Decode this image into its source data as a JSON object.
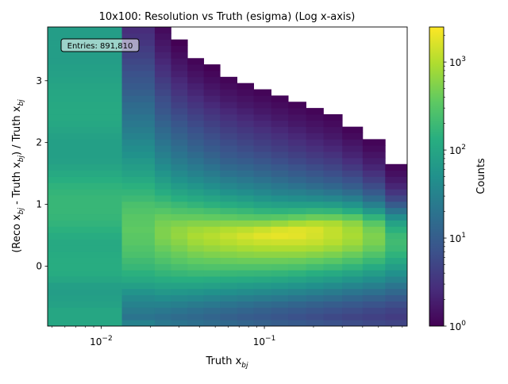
{
  "chart_data": {
    "type": "heatmap",
    "title": "10x100: Resolution vs Truth (esigma) (Log x-axis)",
    "xlabel": {
      "prefix": "Truth x",
      "sub": "bj"
    },
    "ylabel": {
      "parts": [
        {
          "t": "(Reco x"
        },
        {
          "t": "bj",
          "sub": true
        },
        {
          "t": " - Truth x"
        },
        {
          "t": "bj",
          "sub": true
        },
        {
          "t": ") / Truth x"
        },
        {
          "t": "bj",
          "sub": true
        }
      ]
    },
    "x_scale": "log",
    "xlim": [
      0.0047,
      0.75
    ],
    "ylim": [
      -0.97,
      3.87
    ],
    "x_ticks": [
      {
        "value": 0.01,
        "base": "10",
        "exp": "−2"
      },
      {
        "value": 0.1,
        "base": "10",
        "exp": "−1"
      }
    ],
    "y_ticks": [
      {
        "value": 0,
        "label": "0"
      },
      {
        "value": 1,
        "label": "1"
      },
      {
        "value": 2,
        "label": "2"
      },
      {
        "value": 3,
        "label": "3"
      }
    ],
    "annotation": "Entries: 891,810",
    "colorbar": {
      "label": "Counts",
      "scale": "log",
      "range": [
        1,
        2500
      ],
      "colormap": "viridis",
      "ticks": [
        {
          "value": 1,
          "base": "10",
          "exp": "0"
        },
        {
          "value": 10,
          "base": "10",
          "exp": "1"
        },
        {
          "value": 100,
          "base": "10",
          "exp": "2"
        },
        {
          "value": 1000,
          "base": "10",
          "exp": "3"
        }
      ]
    },
    "columns": [
      {
        "x0": 0.0047,
        "x1": 0.0134,
        "log_counts": [
          2.0,
          2.0,
          2.0,
          1.93,
          1.9,
          1.88,
          1.9,
          2.0,
          2.08,
          2.1,
          2.1,
          2.08,
          2.05,
          2.05,
          2.1,
          2.15,
          2.2,
          2.23,
          2.25,
          2.25,
          2.25,
          2.22,
          2.18,
          2.12,
          2.05,
          1.98,
          1.92,
          1.9,
          1.9,
          1.9,
          1.93,
          1.98,
          2.02,
          2.05,
          2.05,
          2.04,
          2.02,
          2.0,
          1.98,
          1.95,
          1.92,
          1.9,
          1.88,
          1.88,
          1.88,
          1.88,
          1.88,
          1.88
        ]
      },
      {
        "x0": 0.0134,
        "x1": 0.0213,
        "log_counts": [
          1.5,
          1.3,
          1.4,
          1.5,
          1.6,
          1.75,
          1.9,
          2.05,
          2.15,
          2.25,
          2.32,
          2.4,
          2.45,
          2.5,
          2.52,
          2.55,
          2.52,
          2.5,
          2.45,
          2.4,
          2.3,
          2.22,
          2.15,
          2.05,
          1.95,
          1.88,
          1.8,
          1.72,
          1.65,
          1.58,
          1.5,
          1.42,
          1.35,
          1.3,
          1.22,
          1.18,
          1.1,
          1.02,
          0.95,
          0.9,
          0.85,
          0.78,
          0.72,
          0.65,
          0.6,
          0.52,
          0.48,
          0.42
        ]
      },
      {
        "x0": 0.0213,
        "x1": 0.0268,
        "log_counts": [
          1.35,
          1.25,
          1.35,
          1.5,
          1.65,
          1.8,
          1.95,
          2.1,
          2.22,
          2.32,
          2.42,
          2.52,
          2.6,
          2.68,
          2.72,
          2.72,
          2.68,
          2.6,
          2.48,
          2.35,
          2.22,
          2.1,
          1.98,
          1.86,
          1.76,
          1.65,
          1.55,
          1.46,
          1.38,
          1.3,
          1.22,
          1.15,
          1.08,
          1.0,
          0.92,
          0.85,
          0.8,
          0.72,
          0.65,
          0.58,
          0.5,
          0.45,
          0.38,
          0.32,
          0.25,
          0.2,
          0.15,
          0.1
        ]
      },
      {
        "x0": 0.0268,
        "x1": 0.0338,
        "log_counts": [
          1.3,
          1.2,
          1.3,
          1.45,
          1.6,
          1.78,
          1.95,
          2.12,
          2.25,
          2.38,
          2.5,
          2.6,
          2.7,
          2.78,
          2.84,
          2.82,
          2.72,
          2.58,
          2.42,
          2.28,
          2.12,
          1.98,
          1.85,
          1.72,
          1.6,
          1.5,
          1.4,
          1.3,
          1.22,
          1.14,
          1.06,
          0.98,
          0.9,
          0.82,
          0.74,
          0.66,
          0.58,
          0.5,
          0.44,
          0.38,
          0.3,
          0.24,
          0.18,
          0.12,
          0.06,
          0.0,
          -0.3,
          -0.6
        ]
      },
      {
        "x0": 0.0338,
        "x1": 0.0425,
        "log_counts": [
          1.25,
          1.15,
          1.25,
          1.4,
          1.58,
          1.76,
          1.95,
          2.12,
          2.28,
          2.42,
          2.56,
          2.68,
          2.8,
          2.9,
          2.96,
          2.9,
          2.76,
          2.58,
          2.4,
          2.22,
          2.05,
          1.9,
          1.76,
          1.62,
          1.5,
          1.38,
          1.28,
          1.18,
          1.08,
          1.0,
          0.92,
          0.84,
          0.76,
          0.68,
          0.6,
          0.52,
          0.44,
          0.36,
          0.3,
          0.22,
          0.16,
          0.1,
          0.04,
          -0.3,
          -0.6,
          -1,
          -1,
          -1
        ]
      },
      {
        "x0": 0.0425,
        "x1": 0.0535,
        "log_counts": [
          1.2,
          1.1,
          1.2,
          1.35,
          1.52,
          1.72,
          1.92,
          2.1,
          2.28,
          2.44,
          2.58,
          2.72,
          2.85,
          2.96,
          3.02,
          2.94,
          2.76,
          2.56,
          2.36,
          2.16,
          1.98,
          1.82,
          1.66,
          1.52,
          1.4,
          1.28,
          1.16,
          1.06,
          0.96,
          0.88,
          0.8,
          0.72,
          0.64,
          0.56,
          0.48,
          0.4,
          0.32,
          0.24,
          0.18,
          0.12,
          0.06,
          0.0,
          -0.5,
          -1,
          -1,
          -1,
          -1,
          -1
        ]
      },
      {
        "x0": 0.0535,
        "x1": 0.068,
        "log_counts": [
          1.15,
          1.05,
          1.15,
          1.3,
          1.48,
          1.68,
          1.88,
          2.08,
          2.26,
          2.44,
          2.6,
          2.75,
          2.9,
          3.02,
          3.1,
          3.0,
          2.78,
          2.54,
          2.3,
          2.1,
          1.9,
          1.72,
          1.56,
          1.42,
          1.28,
          1.16,
          1.04,
          0.94,
          0.86,
          0.78,
          0.7,
          0.62,
          0.54,
          0.46,
          0.38,
          0.3,
          0.22,
          0.16,
          0.1,
          0.04,
          -0.3,
          -0.7,
          -1,
          -1,
          -1,
          -1,
          -1,
          -1
        ]
      },
      {
        "x0": 0.068,
        "x1": 0.086,
        "log_counts": [
          1.1,
          1.0,
          1.1,
          1.25,
          1.44,
          1.64,
          1.85,
          2.06,
          2.25,
          2.44,
          2.62,
          2.78,
          2.94,
          3.08,
          3.18,
          3.05,
          2.78,
          2.5,
          2.26,
          2.04,
          1.84,
          1.66,
          1.5,
          1.35,
          1.22,
          1.1,
          0.98,
          0.88,
          0.78,
          0.7,
          0.62,
          0.54,
          0.46,
          0.38,
          0.3,
          0.22,
          0.16,
          0.1,
          0.04,
          -0.3,
          -0.7,
          -1,
          -1,
          -1,
          -1,
          -1,
          -1,
          -1
        ]
      },
      {
        "x0": 0.086,
        "x1": 0.11,
        "log_counts": [
          1.05,
          0.95,
          1.05,
          1.2,
          1.4,
          1.6,
          1.82,
          2.04,
          2.24,
          2.44,
          2.62,
          2.8,
          2.97,
          3.12,
          3.25,
          3.12,
          2.8,
          2.48,
          2.2,
          1.96,
          1.76,
          1.58,
          1.42,
          1.28,
          1.14,
          1.02,
          0.9,
          0.8,
          0.7,
          0.62,
          0.54,
          0.46,
          0.38,
          0.3,
          0.22,
          0.16,
          0.1,
          0.04,
          -0.3,
          -0.8,
          -1,
          -1,
          -1,
          -1,
          -1,
          -1,
          -1,
          -1
        ]
      },
      {
        "x0": 0.11,
        "x1": 0.14,
        "log_counts": [
          1.0,
          0.9,
          1.0,
          1.15,
          1.35,
          1.56,
          1.78,
          2.0,
          2.22,
          2.42,
          2.62,
          2.8,
          2.98,
          3.14,
          3.28,
          3.2,
          2.86,
          2.5,
          2.18,
          1.92,
          1.7,
          1.5,
          1.34,
          1.2,
          1.06,
          0.94,
          0.82,
          0.72,
          0.62,
          0.54,
          0.46,
          0.38,
          0.3,
          0.22,
          0.16,
          0.1,
          0.04,
          -0.4,
          -0.8,
          -1,
          -1,
          -1,
          -1,
          -1,
          -1,
          -1,
          -1,
          -1
        ]
      },
      {
        "x0": 0.14,
        "x1": 0.18,
        "log_counts": [
          0.95,
          0.85,
          0.95,
          1.1,
          1.3,
          1.52,
          1.74,
          1.96,
          2.18,
          2.4,
          2.6,
          2.8,
          2.98,
          3.14,
          3.26,
          3.24,
          2.94,
          2.56,
          2.2,
          1.9,
          1.66,
          1.46,
          1.28,
          1.12,
          0.98,
          0.86,
          0.74,
          0.64,
          0.54,
          0.46,
          0.38,
          0.3,
          0.22,
          0.16,
          0.1,
          0.04,
          -0.4,
          -0.9,
          -1,
          -1,
          -1,
          -1,
          -1,
          -1,
          -1,
          -1,
          -1,
          -1
        ]
      },
      {
        "x0": 0.18,
        "x1": 0.23,
        "log_counts": [
          0.9,
          0.8,
          0.9,
          1.05,
          1.25,
          1.46,
          1.68,
          1.9,
          2.12,
          2.34,
          2.56,
          2.76,
          2.95,
          3.1,
          3.18,
          3.2,
          3.0,
          2.62,
          2.24,
          1.9,
          1.62,
          1.4,
          1.2,
          1.04,
          0.9,
          0.78,
          0.66,
          0.56,
          0.46,
          0.38,
          0.3,
          0.22,
          0.16,
          0.1,
          0.04,
          -0.5,
          -1,
          -1,
          -1,
          -1,
          -1,
          -1,
          -1,
          -1,
          -1,
          -1,
          -1,
          -1
        ]
      },
      {
        "x0": 0.23,
        "x1": 0.3,
        "log_counts": [
          0.85,
          0.75,
          0.85,
          1.0,
          1.2,
          1.4,
          1.62,
          1.84,
          2.06,
          2.28,
          2.5,
          2.7,
          2.88,
          3.02,
          3.08,
          3.08,
          2.96,
          2.6,
          2.22,
          1.86,
          1.56,
          1.32,
          1.12,
          0.96,
          0.82,
          0.7,
          0.58,
          0.48,
          0.38,
          0.3,
          0.22,
          0.16,
          0.1,
          0.04,
          -0.5,
          -1,
          -1,
          -1,
          -1,
          -1,
          -1,
          -1,
          -1,
          -1,
          -1,
          -1,
          -1,
          -1
        ]
      },
      {
        "x0": 0.3,
        "x1": 0.4,
        "log_counts": [
          0.8,
          0.7,
          0.8,
          0.94,
          1.12,
          1.32,
          1.54,
          1.76,
          1.98,
          2.2,
          2.4,
          2.6,
          2.78,
          2.9,
          2.95,
          2.92,
          2.8,
          2.5,
          2.1,
          1.75,
          1.45,
          1.2,
          1.0,
          0.84,
          0.7,
          0.56,
          0.44,
          0.34,
          0.26,
          0.18,
          0.1,
          0.04,
          -0.5,
          -1,
          -1,
          -1,
          -1,
          -1,
          -1,
          -1,
          -1,
          -1,
          -1,
          -1,
          -1,
          -1,
          -1,
          -1
        ]
      },
      {
        "x0": 0.4,
        "x1": 0.55,
        "log_counts": [
          0.75,
          0.66,
          0.74,
          0.88,
          1.05,
          1.25,
          1.45,
          1.66,
          1.86,
          2.06,
          2.26,
          2.44,
          2.6,
          2.7,
          2.72,
          2.66,
          2.5,
          2.2,
          1.8,
          1.46,
          1.18,
          0.96,
          0.78,
          0.62,
          0.48,
          0.36,
          0.26,
          0.18,
          0.1,
          0.04,
          -0.6,
          -1,
          -1,
          -1,
          -1,
          -1,
          -1,
          -1,
          -1,
          -1,
          -1,
          -1,
          -1,
          -1,
          -1,
          -1,
          -1,
          -1
        ]
      },
      {
        "x0": 0.55,
        "x1": 0.75,
        "log_counts": [
          0.7,
          0.6,
          0.68,
          0.8,
          0.96,
          1.14,
          1.32,
          1.52,
          1.7,
          1.88,
          2.04,
          2.18,
          2.28,
          2.32,
          2.28,
          2.15,
          1.95,
          1.66,
          1.3,
          0.98,
          0.72,
          0.52,
          0.36,
          0.24,
          0.14,
          0.06,
          -0.6,
          -1,
          -1,
          -1,
          -1,
          -1,
          -1,
          -1,
          -1,
          -1,
          -1,
          -1,
          -1,
          -1,
          -1,
          -1,
          -1,
          -1,
          -1,
          -1,
          -1,
          -1
        ]
      }
    ]
  }
}
